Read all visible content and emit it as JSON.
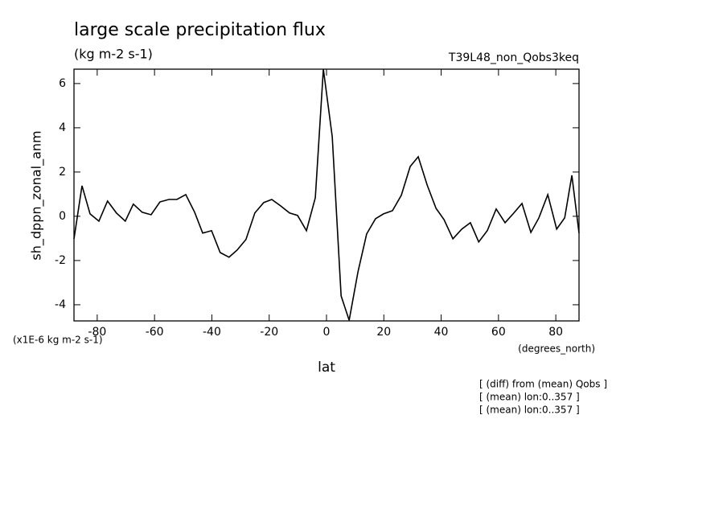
{
  "chart_data": {
    "type": "line",
    "title": "large scale precipitation flux",
    "subtitle": "(kg m-2 s-1)",
    "dataset": "T39L48_non_Qobs3keq",
    "y_label": "sh_dppn_zonal_anm",
    "y_units": "(x1E-6 kg m-2 s-1)",
    "x_label": "lat",
    "x_units": "(degrees_north)",
    "notes": [
      "[ (diff) from (mean) Qobs ]",
      "[ (mean) lon:0..357 ]",
      "[ (mean) lon:0..357 ]"
    ],
    "xlim": [
      -88.1,
      88.1
    ],
    "ylim": [
      -4.73,
      6.65
    ],
    "xticks": [
      -80,
      -60,
      -40,
      -20,
      0,
      20,
      40,
      60,
      80
    ],
    "yticks": [
      -4,
      -2,
      0,
      2,
      4,
      6
    ],
    "x": [
      -88.1,
      -85.3,
      -82.5,
      -79.4,
      -76.4,
      -73.3,
      -70.2,
      -67.4,
      -64.3,
      -61.2,
      -58.1,
      -55.0,
      -52.2,
      -49.1,
      -46.0,
      -43.2,
      -40.1,
      -37.1,
      -34.0,
      -31.2,
      -28.1,
      -25.0,
      -21.9,
      -19.1,
      -16.0,
      -12.9,
      -10.1,
      -7.0,
      -3.9,
      -1.1,
      2.0,
      5.1,
      7.9,
      11.0,
      14.0,
      17.1,
      19.9,
      23.0,
      26.1,
      29.2,
      32.0,
      35.1,
      38.2,
      41.0,
      44.1,
      47.2,
      50.2,
      53.1,
      56.1,
      59.2,
      62.3,
      65.1,
      68.2,
      71.3,
      74.1,
      77.2,
      80.3,
      83.1,
      85.6,
      88.1
    ],
    "series": [
      {
        "name": "sh_dppn_zonal_anm",
        "color": "#000000",
        "values": [
          -1.02,
          1.38,
          0.11,
          -0.22,
          0.69,
          0.15,
          -0.22,
          0.55,
          0.18,
          0.07,
          0.65,
          0.76,
          0.76,
          0.98,
          0.18,
          -0.76,
          -0.65,
          -1.64,
          -1.85,
          -1.53,
          -1.05,
          0.15,
          0.62,
          0.76,
          0.47,
          0.15,
          0.04,
          -0.65,
          0.84,
          6.65,
          3.6,
          -3.6,
          -4.7,
          -2.5,
          -0.8,
          -0.11,
          0.11,
          0.25,
          0.95,
          2.25,
          2.69,
          1.42,
          0.36,
          -0.15,
          -1.02,
          -0.58,
          -0.29,
          -1.16,
          -0.65,
          0.33,
          -0.29,
          0.11,
          0.58,
          -0.73,
          -0.07,
          0.98,
          -0.58,
          -0.07,
          1.85,
          -0.76
        ]
      }
    ]
  }
}
